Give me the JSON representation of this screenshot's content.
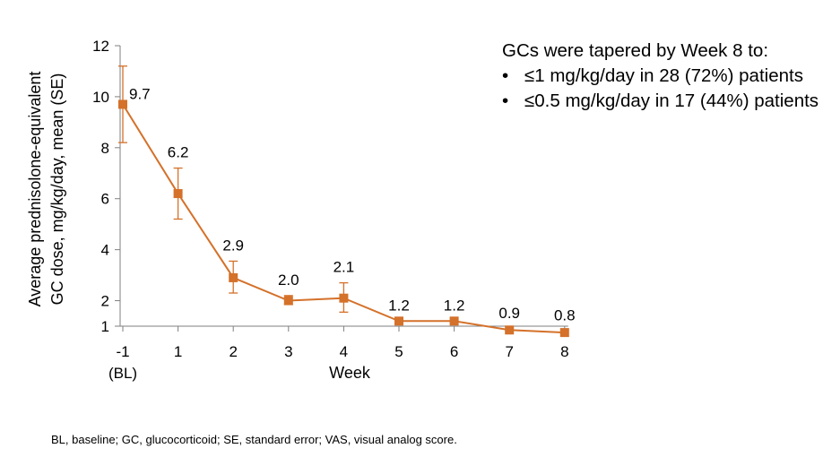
{
  "chart_data": {
    "type": "line",
    "ylabel_line1": "Average prednisolone-equivalent",
    "ylabel_line2": "GC dose, mg/kg/day, mean (SE)",
    "xlabel": "Week",
    "ylim": [
      1,
      12
    ],
    "yticks": [
      1,
      2,
      4,
      6,
      8,
      10,
      12
    ],
    "categories": [
      "-1",
      "1",
      "2",
      "3",
      "4",
      "5",
      "6",
      "7",
      "8"
    ],
    "category_sublabels": [
      "(BL)",
      "",
      "",
      "",
      "",
      "",
      "",
      "",
      ""
    ],
    "series": [
      {
        "values": [
          9.7,
          6.2,
          2.9,
          2.0,
          2.1,
          1.2,
          1.2,
          0.9,
          0.8
        ],
        "error_low": [
          8.2,
          5.2,
          2.3,
          1.85,
          1.55,
          1.2,
          1.2,
          0.9,
          0.8
        ],
        "error_high": [
          11.2,
          7.2,
          3.55,
          2.2,
          2.7,
          1.2,
          1.2,
          0.9,
          0.8
        ],
        "plotted": [
          9.7,
          6.2,
          2.9,
          2.0,
          2.1,
          1.2,
          1.2,
          0.85,
          0.75
        ],
        "data_labels": [
          "9.7",
          "6.2",
          "2.9",
          "2.0",
          "2.1",
          "1.2",
          "1.2",
          "0.9",
          "0.8"
        ],
        "color": "#d4712a"
      }
    ],
    "grid": false,
    "legend": "none"
  },
  "note": {
    "title": "GCs were tapered by Week 8 to:",
    "bullet_symbol": "•",
    "items": [
      "≤1 mg/kg/day in 28 (72%) patients",
      "≤0.5 mg/kg/day in 17 (44%) patients"
    ]
  },
  "footnote": "BL, baseline; GC, glucocorticoid; SE, standard error; VAS, visual analog score."
}
